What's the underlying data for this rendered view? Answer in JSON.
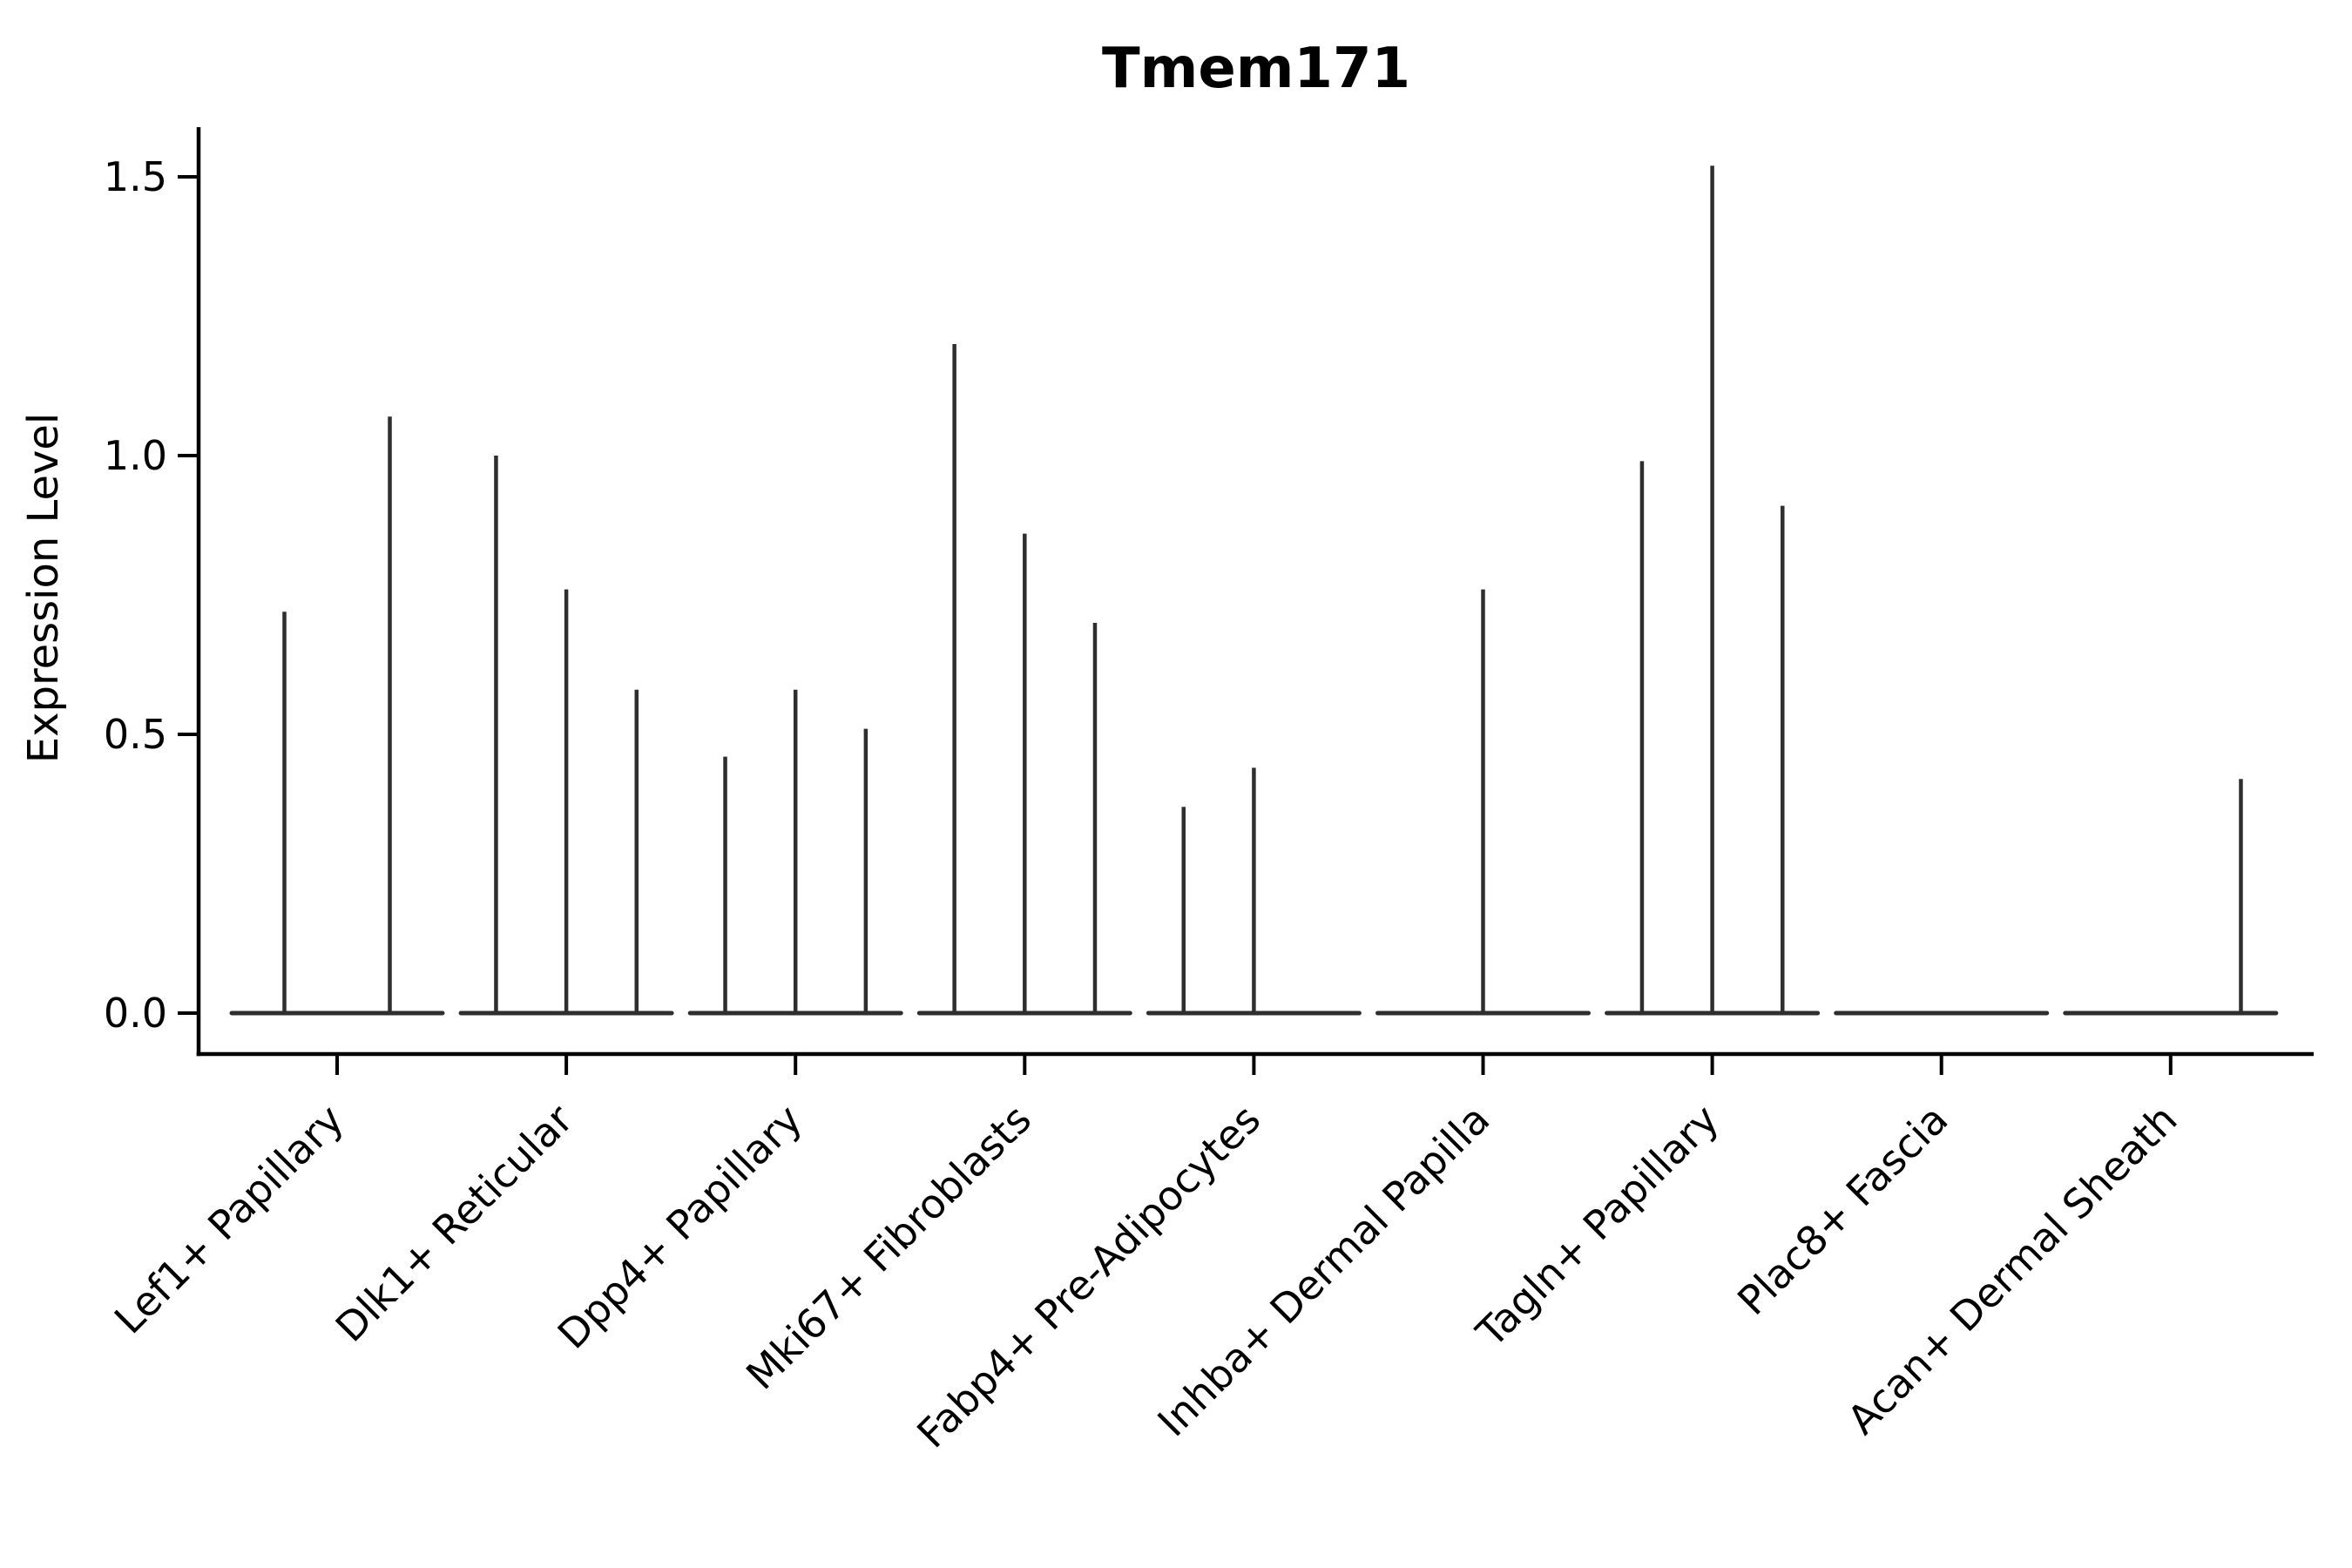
{
  "chart_data": {
    "type": "violin",
    "title": "Tmem171",
    "xlabel": "",
    "ylabel": "Expression Level",
    "yticks": [
      "0.0",
      "0.5",
      "1.0",
      "1.5"
    ],
    "ylim": [
      -0.07,
      1.59
    ],
    "grid": false,
    "legend": "none",
    "violin_line_color": "#2e2e2e",
    "axis_color": "#000000",
    "background_color": "#ffffff",
    "description": "Each category shows a group of needle-thin violins: a flat baseline at expression 0 with a thin spike rising to the maximum expression of each sub-violin (0 = flat, no spike).",
    "categories": [
      {
        "label": "Lef1+ Papillary",
        "violin_max_expression": [
          0.72,
          1.07
        ]
      },
      {
        "label": "Dlk1+ Reticular",
        "violin_max_expression": [
          1.0,
          0.76,
          0.58
        ]
      },
      {
        "label": "Dpp4+ Papillary",
        "violin_max_expression": [
          0.46,
          0.58,
          0.51
        ]
      },
      {
        "label": "Mki67+ Fibroblasts",
        "violin_max_expression": [
          1.2,
          0.86,
          0.7
        ]
      },
      {
        "label": "Fabp4+ Pre-Adipocytes",
        "violin_max_expression": [
          0.37,
          0.44,
          0
        ]
      },
      {
        "label": "Inhba+ Dermal Papilla",
        "violin_max_expression": [
          0,
          0.76,
          0
        ]
      },
      {
        "label": "Tagln+ Papillary",
        "violin_max_expression": [
          0.99,
          1.52,
          0.91
        ]
      },
      {
        "label": "Plac8+ Fascia",
        "violin_max_expression": [
          0,
          0,
          0
        ]
      },
      {
        "label": "Acan+ Dermal Sheath",
        "violin_max_expression": [
          0,
          0,
          0.42
        ]
      }
    ]
  }
}
